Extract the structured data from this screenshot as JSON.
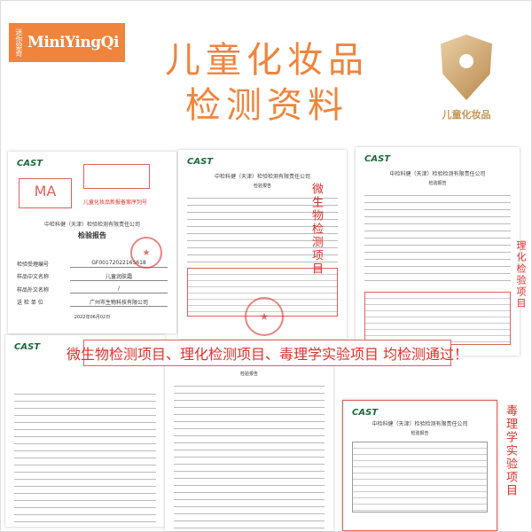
{
  "brand": {
    "logo_cn": "迷你婴奇",
    "logo_en": "MiniYingQi"
  },
  "title": {
    "line1": "儿童化妆品",
    "line2": "检测资料"
  },
  "badge": {
    "label": "儿童化妆品",
    "icon": "shield-child-icon"
  },
  "common": {
    "cast": "CAST",
    "cast_sub": "中检科健",
    "company": "中检科健（天津）检验检测有限责任公司",
    "report": "检验报告"
  },
  "doc1": {
    "filing_note": "儿童化妆品新报备案序列号",
    "fields": [
      {
        "label": "检验受理编号",
        "value": "GF0017202216S618"
      },
      {
        "label": "样品中文名称",
        "value": "儿童润肤霜"
      },
      {
        "label": "样品外文名称",
        "value": "/"
      },
      {
        "label": "送 检 单 位",
        "value": "广州市生物科技有限公司"
      }
    ],
    "date": "2022年06月02日"
  },
  "labels": {
    "micro": "微生物检测项目",
    "physchem": "理化检验项目",
    "tox": "毒理学实验项目"
  },
  "banner": "微生物检测项目、理化检测项目、毒理学实验项目 均检测通过！",
  "colors": {
    "accent": "#f0843c",
    "red": "#e0302a",
    "gold": "#c49357"
  }
}
